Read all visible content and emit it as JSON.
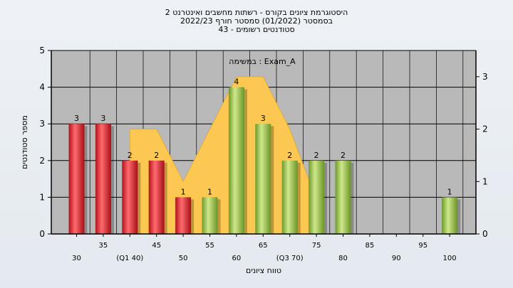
{
  "chart_data": {
    "type": "bar",
    "title": [
      "היסטוגרמת ציונים בקורס - רשתות מחשבים ואינטרנט 2",
      "בסמסטר (01/2022) סמסטר חורף 2022/23",
      "סטודנטים רשומים - 43"
    ],
    "xlabel": "טווח ציונים",
    "ylabel": "מספר סטודנטים",
    "annotation": "Exam_A : במשימה",
    "x_tick_labels": [
      "30",
      "35",
      "(Q1 40)",
      "45",
      "50",
      "55",
      "60",
      "65",
      "(Q3 70)",
      "75",
      "80",
      "85",
      "90",
      "95",
      "100"
    ],
    "x": [
      30,
      35,
      40,
      45,
      50,
      55,
      60,
      65,
      70,
      75,
      80,
      85,
      90,
      95,
      100
    ],
    "values": [
      3,
      3,
      2,
      2,
      1,
      1,
      4,
      3,
      2,
      2,
      2,
      0,
      0,
      0,
      1
    ],
    "bar_colors": [
      "#e8383d",
      "#e8383d",
      "#e8383d",
      "#e8383d",
      "#e8383d",
      "#9fc750",
      "#9fc750",
      "#9fc750",
      "#9fc750",
      "#9fc750",
      "#9fc750",
      "#9fc750",
      "#9fc750",
      "#9fc750",
      "#9fc750"
    ],
    "ylim": [
      0,
      5
    ],
    "y_ticks": [
      0,
      1,
      2,
      3,
      4,
      5
    ],
    "y2lim": [
      0,
      3.5
    ],
    "y2_ticks": [
      0,
      1,
      2,
      3
    ],
    "distribution": {
      "x": [
        40,
        45,
        50,
        55,
        60,
        65,
        70,
        75
      ],
      "y": [
        2.0,
        2.0,
        1.0,
        2.0,
        3.0,
        3.0,
        2.0,
        0.65
      ]
    },
    "grid": true,
    "colors": {
      "plot_bg": "#b9b9b9",
      "distribution": "#fcc851",
      "fail_bar": "#e8383d",
      "pass_bar": "#9fc750"
    }
  }
}
